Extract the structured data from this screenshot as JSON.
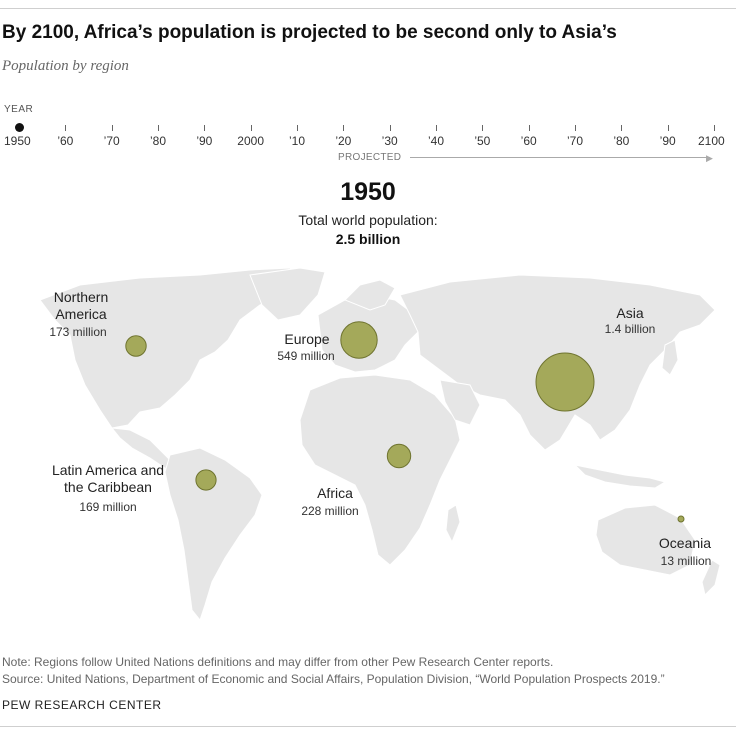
{
  "title": "By 2100, Africa’s population is projected to be second only to Asia’s",
  "subtitle": "Population by region",
  "timeline": {
    "label": "YEAR",
    "ticks": [
      "1950",
      "’60",
      "’70",
      "’80",
      "’90",
      "2000",
      "’10",
      "’20",
      "’30",
      "’40",
      "’50",
      "’60",
      "’70",
      "’80",
      "’90",
      "2100"
    ],
    "selected": "1950",
    "projected_label": "PROJECTED"
  },
  "current": {
    "year": "1950",
    "total_label": "Total world population:",
    "total_value": "2.5 billion"
  },
  "regions": [
    {
      "name_line1": "Northern",
      "name_line2": "America",
      "population": "173 million",
      "value_millions": 173
    },
    {
      "name_line1": "Europe",
      "name_line2": "",
      "population": "549 million",
      "value_millions": 549
    },
    {
      "name_line1": "Asia",
      "name_line2": "",
      "population": "1.4 billion",
      "value_millions": 1400
    },
    {
      "name_line1": "Latin America and",
      "name_line2": "the Caribbean",
      "population": "169 million",
      "value_millions": 169
    },
    {
      "name_line1": "Africa",
      "name_line2": "",
      "population": "228 million",
      "value_millions": 228
    },
    {
      "name_line1": "Oceania",
      "name_line2": "",
      "population": "13 million",
      "value_millions": 13
    }
  ],
  "colors": {
    "bubble_fill": "#a4a95a",
    "bubble_stroke": "#6f7430",
    "land": "#e6e6e6"
  },
  "note": "Note: Regions follow United Nations definitions and may differ from other Pew Research Center reports.",
  "source": "Source: United Nations, Department of Economic and Social Affairs, Population Division, “World Population Prospects 2019.”",
  "brand": "PEW RESEARCH CENTER"
}
